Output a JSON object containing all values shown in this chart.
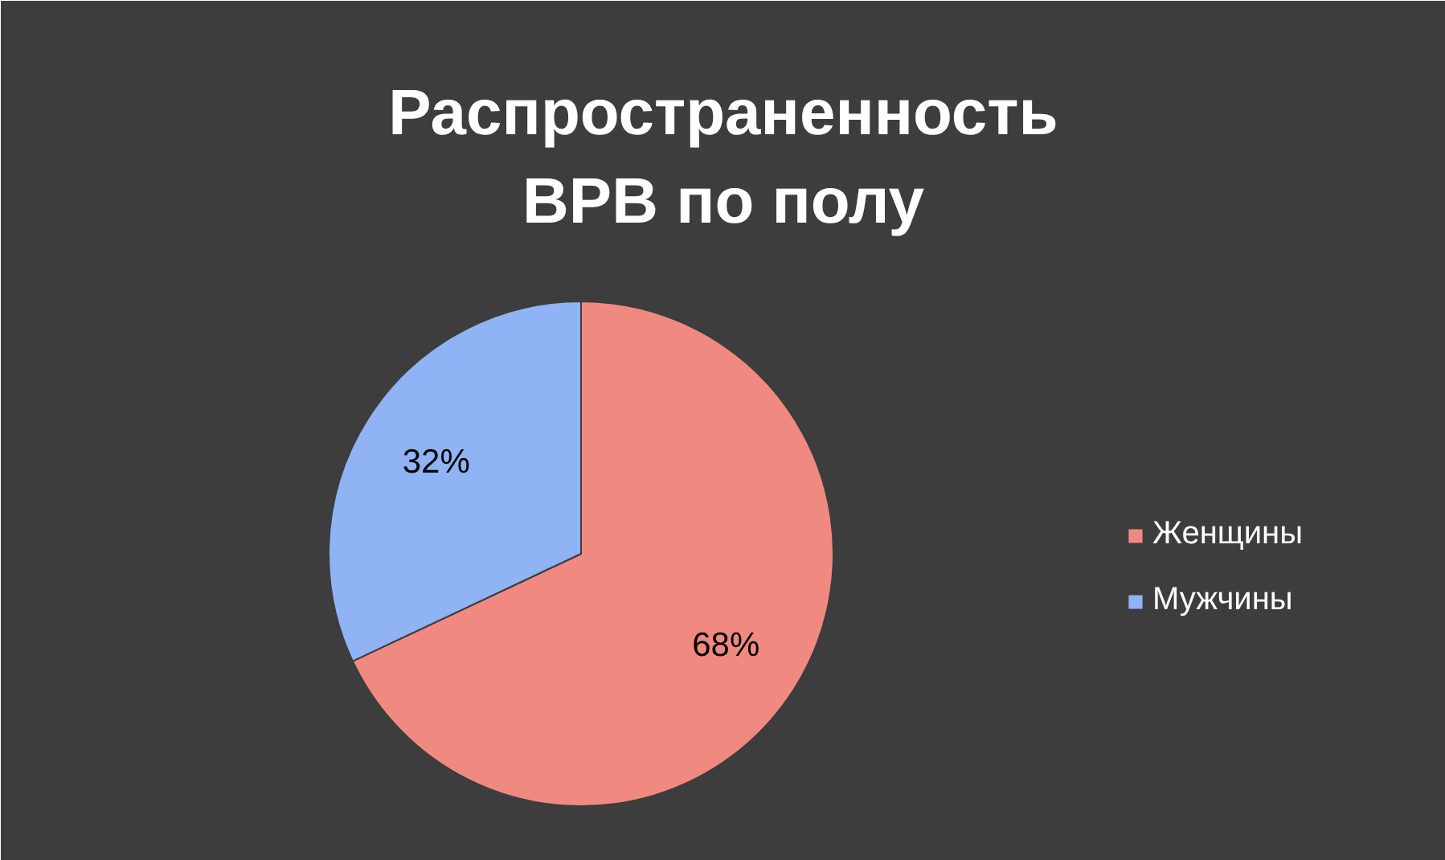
{
  "chart_data": {
    "type": "pie",
    "title": "Распространенность ВРВ по полу",
    "categories": [
      "Женщины",
      "Мужчины"
    ],
    "values": [
      68,
      32
    ],
    "colors": [
      "#f08a80",
      "#8fb3f4"
    ],
    "value_labels": [
      "68%",
      "32%"
    ],
    "legend": "right"
  }
}
